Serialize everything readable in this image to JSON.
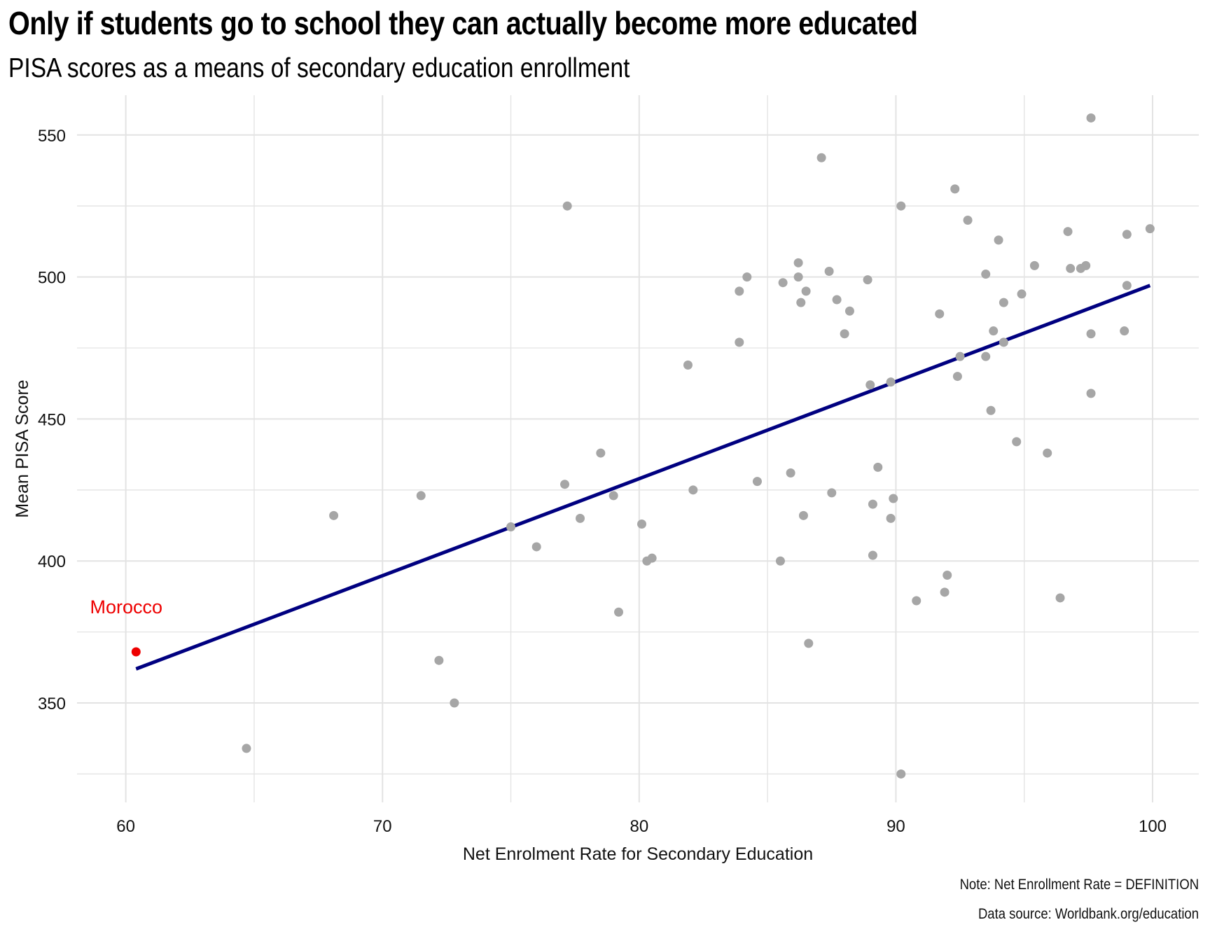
{
  "title": "Only if students go to school they can actually become more educated",
  "subtitle": "PISA scores as a means of secondary education enrollment",
  "caption_note": "Note: Net Enrollment Rate = DEFINITION",
  "caption_source": "Data source: Worldbank.org/education",
  "chart_data": {
    "type": "scatter",
    "xlabel": "Net Enrolment Rate for Secondary Education",
    "ylabel": "Mean PISA Score",
    "xlim": [
      58.1,
      101.8
    ],
    "ylim": [
      315,
      564
    ],
    "xticks": [
      60,
      70,
      80,
      90,
      100
    ],
    "yticks": [
      350,
      400,
      450,
      500,
      550
    ],
    "grid": true,
    "colors": {
      "points": "#a6a6a6",
      "highlight": "#ee0000",
      "fit_line": "#000080",
      "grid": "#e3e3e3"
    },
    "highlight": {
      "label": "Morocco",
      "x": 60.4,
      "y": 368
    },
    "fit_line": {
      "x": [
        60.4,
        99.9
      ],
      "y": [
        362,
        497
      ]
    },
    "points": [
      {
        "x": 64.7,
        "y": 334
      },
      {
        "x": 68.1,
        "y": 416
      },
      {
        "x": 71.5,
        "y": 423
      },
      {
        "x": 72.2,
        "y": 365
      },
      {
        "x": 72.8,
        "y": 350
      },
      {
        "x": 75.0,
        "y": 412
      },
      {
        "x": 76.0,
        "y": 405
      },
      {
        "x": 77.1,
        "y": 427
      },
      {
        "x": 77.2,
        "y": 525
      },
      {
        "x": 77.7,
        "y": 415
      },
      {
        "x": 78.5,
        "y": 438
      },
      {
        "x": 79.0,
        "y": 423
      },
      {
        "x": 79.2,
        "y": 382
      },
      {
        "x": 80.1,
        "y": 413
      },
      {
        "x": 80.3,
        "y": 400
      },
      {
        "x": 80.5,
        "y": 401
      },
      {
        "x": 81.9,
        "y": 469
      },
      {
        "x": 82.1,
        "y": 425
      },
      {
        "x": 83.9,
        "y": 495
      },
      {
        "x": 83.9,
        "y": 477
      },
      {
        "x": 84.2,
        "y": 500
      },
      {
        "x": 84.6,
        "y": 428
      },
      {
        "x": 85.5,
        "y": 400
      },
      {
        "x": 85.6,
        "y": 498
      },
      {
        "x": 85.9,
        "y": 431
      },
      {
        "x": 86.2,
        "y": 505
      },
      {
        "x": 86.2,
        "y": 500
      },
      {
        "x": 86.3,
        "y": 491
      },
      {
        "x": 86.4,
        "y": 416
      },
      {
        "x": 86.5,
        "y": 495
      },
      {
        "x": 86.6,
        "y": 371
      },
      {
        "x": 87.1,
        "y": 542
      },
      {
        "x": 87.4,
        "y": 502
      },
      {
        "x": 87.5,
        "y": 424
      },
      {
        "x": 87.7,
        "y": 492
      },
      {
        "x": 88.0,
        "y": 480
      },
      {
        "x": 88.2,
        "y": 488
      },
      {
        "x": 88.9,
        "y": 499
      },
      {
        "x": 89.0,
        "y": 462
      },
      {
        "x": 89.1,
        "y": 420
      },
      {
        "x": 89.1,
        "y": 402
      },
      {
        "x": 89.3,
        "y": 433
      },
      {
        "x": 89.8,
        "y": 463
      },
      {
        "x": 89.8,
        "y": 415
      },
      {
        "x": 89.9,
        "y": 422
      },
      {
        "x": 90.2,
        "y": 325
      },
      {
        "x": 90.2,
        "y": 525
      },
      {
        "x": 90.8,
        "y": 386
      },
      {
        "x": 91.7,
        "y": 487
      },
      {
        "x": 91.9,
        "y": 389
      },
      {
        "x": 92.0,
        "y": 395
      },
      {
        "x": 92.3,
        "y": 531
      },
      {
        "x": 92.4,
        "y": 465
      },
      {
        "x": 92.5,
        "y": 472
      },
      {
        "x": 92.8,
        "y": 520
      },
      {
        "x": 93.5,
        "y": 501
      },
      {
        "x": 93.5,
        "y": 472
      },
      {
        "x": 93.7,
        "y": 453
      },
      {
        "x": 93.8,
        "y": 481
      },
      {
        "x": 94.0,
        "y": 513
      },
      {
        "x": 94.2,
        "y": 491
      },
      {
        "x": 94.2,
        "y": 477
      },
      {
        "x": 94.7,
        "y": 442
      },
      {
        "x": 94.9,
        "y": 494
      },
      {
        "x": 95.4,
        "y": 504
      },
      {
        "x": 95.9,
        "y": 438
      },
      {
        "x": 96.4,
        "y": 387
      },
      {
        "x": 96.7,
        "y": 516
      },
      {
        "x": 96.8,
        "y": 503
      },
      {
        "x": 97.2,
        "y": 503
      },
      {
        "x": 97.4,
        "y": 504
      },
      {
        "x": 97.6,
        "y": 556
      },
      {
        "x": 97.6,
        "y": 480
      },
      {
        "x": 97.6,
        "y": 459
      },
      {
        "x": 98.9,
        "y": 481
      },
      {
        "x": 99.0,
        "y": 515
      },
      {
        "x": 99.0,
        "y": 497
      },
      {
        "x": 99.9,
        "y": 517
      }
    ]
  }
}
